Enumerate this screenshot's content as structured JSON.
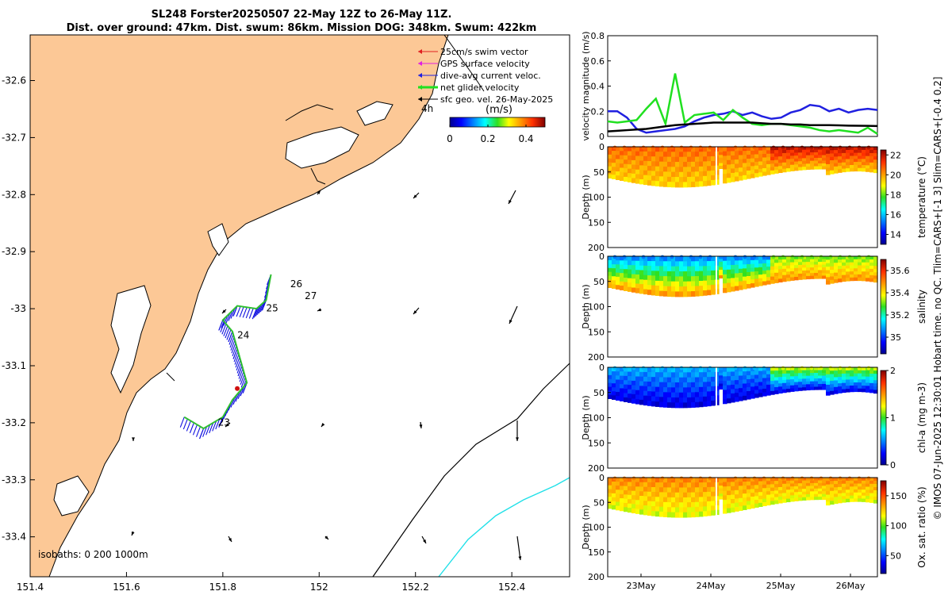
{
  "title": {
    "line1": "SL248 Forster20250507 22-May 12Z to 26-May 11Z.",
    "line2": "Dist. over ground: 47km. Dist. swum: 86km. Mission DOG: 348km. Swum: 422km"
  },
  "chart_data": [
    {
      "type": "map",
      "name": "glider track map",
      "x_ticks": [
        "151.4",
        "151.6",
        "151.8",
        "152",
        "152.2",
        "152.4"
      ],
      "y_ticks": [
        "-32.6",
        "-32.7",
        "-32.8",
        "-32.9",
        "-33",
        "-33.1",
        "-33.2",
        "-33.3",
        "-33.4"
      ],
      "xlim": [
        151.4,
        152.52
      ],
      "ylim": [
        -33.47,
        -32.52
      ],
      "legend": [
        {
          "label": "25cm/s swim vector",
          "color": "#e02020"
        },
        {
          "label": "GPS surface velocity",
          "color": "#e020e0"
        },
        {
          "label": "dive-avg current veloc.",
          "color": "#2020e0"
        },
        {
          "label": "net glider velocity",
          "color": "#20e020"
        },
        {
          "label": "sfc geo. vel. 26-May-2025",
          "color": "#000000"
        }
      ],
      "legend_note": "4h",
      "colorbar": {
        "label": "(m/s)",
        "ticks": [
          "0",
          "0.2",
          "0.4"
        ],
        "range": [
          0,
          0.5
        ]
      },
      "day_labels": [
        "23",
        "24",
        "25",
        "26",
        "27"
      ],
      "isobath_note": "isobaths: 0   200  1000m",
      "track": [
        {
          "lon": 151.72,
          "lat": -33.19
        },
        {
          "lon": 151.76,
          "lat": -33.21
        },
        {
          "lon": 151.8,
          "lat": -33.19
        },
        {
          "lon": 151.82,
          "lat": -33.16
        },
        {
          "lon": 151.85,
          "lat": -33.13
        },
        {
          "lon": 151.84,
          "lat": -33.1
        },
        {
          "lon": 151.83,
          "lat": -33.07
        },
        {
          "lon": 151.82,
          "lat": -33.04
        },
        {
          "lon": 151.8,
          "lat": -33.02
        },
        {
          "lon": 151.83,
          "lat": -32.995
        },
        {
          "lon": 151.87,
          "lat": -33.0
        },
        {
          "lon": 151.89,
          "lat": -32.985
        },
        {
          "lon": 151.9,
          "lat": -32.94
        }
      ]
    },
    {
      "type": "line",
      "name": "velocity magnitude",
      "ylabel": "velocity magnitude (m/s)",
      "y_ticks": [
        "0",
        "0.2",
        "0.4",
        "0.6",
        "0.8"
      ],
      "ylim": [
        0,
        0.8
      ],
      "series": [
        {
          "name": "dive-avg current",
          "color": "#2020e0",
          "values": [
            0.2,
            0.2,
            0.15,
            0.06,
            0.03,
            0.04,
            0.05,
            0.06,
            0.08,
            0.12,
            0.15,
            0.17,
            0.18,
            0.2,
            0.17,
            0.19,
            0.16,
            0.14,
            0.15,
            0.19,
            0.21,
            0.25,
            0.24,
            0.2,
            0.22,
            0.19,
            0.21,
            0.22,
            0.21
          ]
        },
        {
          "name": "net glider velocity",
          "color": "#20e020",
          "values": [
            0.12,
            0.11,
            0.12,
            0.13,
            0.22,
            0.3,
            0.1,
            0.5,
            0.11,
            0.17,
            0.18,
            0.19,
            0.13,
            0.21,
            0.15,
            0.1,
            0.09,
            0.1,
            0.1,
            0.09,
            0.08,
            0.07,
            0.05,
            0.04,
            0.05,
            0.04,
            0.03,
            0.07,
            0.02
          ]
        },
        {
          "name": "sfc geo vel",
          "color": "#000000",
          "values": [
            0.04,
            0.045,
            0.05,
            0.055,
            0.06,
            0.07,
            0.08,
            0.09,
            0.095,
            0.1,
            0.105,
            0.11,
            0.11,
            0.11,
            0.11,
            0.11,
            0.105,
            0.1,
            0.1,
            0.095,
            0.095,
            0.09,
            0.09,
            0.09,
            0.088,
            0.086,
            0.085,
            0.084,
            0.083
          ]
        }
      ]
    },
    {
      "type": "heatmap",
      "name": "temperature section",
      "ylabel": "Depth (m)",
      "y_ticks": [
        "0",
        "50",
        "100",
        "150",
        "200"
      ],
      "ylim": [
        0,
        200
      ],
      "cbar_label": "temperature (°C)",
      "cbar_ticks": [
        "22",
        "20",
        "18",
        "16",
        "14"
      ],
      "cbar_range": [
        13,
        22.5
      ],
      "surface_value": 20.7,
      "deep_value": 19.3,
      "late_surface": 22
    },
    {
      "type": "heatmap",
      "name": "salinity section",
      "ylabel": "Depth (m)",
      "y_ticks": [
        "0",
        "50",
        "100",
        "150",
        "200"
      ],
      "ylim": [
        0,
        200
      ],
      "cbar_label": "salinity",
      "cbar_ticks": [
        "35.6",
        "35.4",
        "35.2",
        "35"
      ],
      "cbar_range": [
        34.85,
        35.7
      ],
      "surface_value": 35.05,
      "deep_value": 35.5,
      "late_surface": 35.3
    },
    {
      "type": "heatmap",
      "name": "chlorophyll section",
      "ylabel": "Depth (m)",
      "y_ticks": [
        "0",
        "50",
        "100",
        "150",
        "200"
      ],
      "ylim": [
        0,
        200
      ],
      "cbar_label": "chl-a (mg m-3)",
      "cbar_ticks": [
        "2",
        "1",
        "0"
      ],
      "cbar_range": [
        0,
        2
      ],
      "surface_value": 0.6,
      "deep_value": 0.15,
      "late_surface": 1.2
    },
    {
      "type": "heatmap",
      "name": "oxygen section",
      "ylabel": "Depth (m)",
      "y_ticks": [
        "0",
        "50",
        "100",
        "150",
        "200"
      ],
      "ylim": [
        0,
        200
      ],
      "cbar_label": "Ox. sat. ratio (%)",
      "cbar_ticks": [
        "150",
        "100",
        "50"
      ],
      "cbar_range": [
        20,
        175
      ],
      "surface_value": 140,
      "deep_value": 112,
      "late_surface": 140
    }
  ],
  "x_date_ticks": [
    "23May",
    "24May",
    "25May",
    "26May"
  ],
  "side_note": "© IMOS 07-Jun-2025 12:30:01 Hobart time. no QC. Tlim=CARS+[-1 3] Slim=CARS+[-0.4 0.2]"
}
